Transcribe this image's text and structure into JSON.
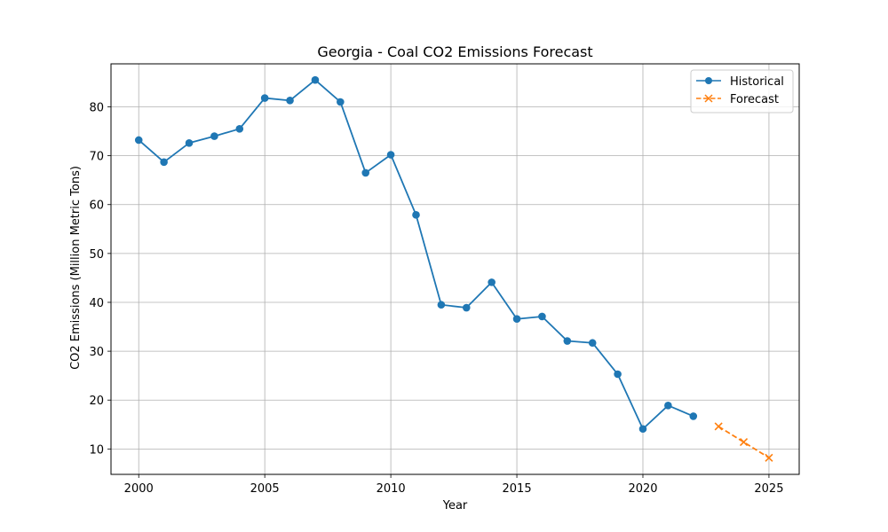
{
  "chart_data": {
    "type": "line",
    "title": "Georgia - Coal CO2 Emissions Forecast",
    "xlabel": "Year",
    "ylabel": "CO2 Emissions (Million Metric Tons)",
    "xlim": [
      1998.9,
      2026.2
    ],
    "ylim": [
      4.8,
      88.8
    ],
    "xticks": [
      2000,
      2005,
      2010,
      2015,
      2020,
      2025
    ],
    "yticks": [
      10,
      20,
      30,
      40,
      50,
      60,
      70,
      80
    ],
    "grid": true,
    "legend_position": "top-right",
    "series": [
      {
        "name": "Historical",
        "color": "#1f77b4",
        "marker": "circle",
        "linestyle": "solid",
        "x": [
          2000,
          2001,
          2002,
          2003,
          2004,
          2005,
          2006,
          2007,
          2008,
          2009,
          2010,
          2011,
          2012,
          2013,
          2014,
          2015,
          2016,
          2017,
          2018,
          2019,
          2020,
          2021,
          2022
        ],
        "y": [
          73.2,
          68.7,
          72.6,
          74.0,
          75.5,
          81.8,
          81.3,
          85.5,
          81.0,
          66.5,
          70.2,
          57.9,
          39.5,
          38.9,
          44.1,
          36.6,
          37.1,
          32.1,
          31.7,
          25.3,
          14.1,
          18.9,
          16.7
        ]
      },
      {
        "name": "Forecast",
        "color": "#ff7f0e",
        "marker": "x",
        "linestyle": "dashed",
        "x": [
          2023,
          2024,
          2025
        ],
        "y": [
          14.6,
          11.4,
          8.2
        ]
      }
    ]
  }
}
